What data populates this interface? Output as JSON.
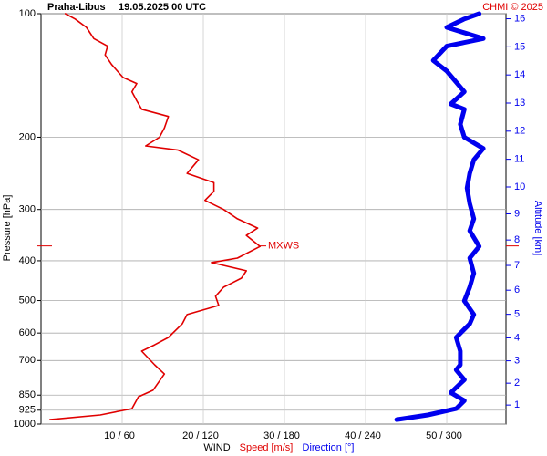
{
  "chart_data": {
    "type": "line",
    "station": "Praha-Libus",
    "title": "19.05.2025 00 UTC",
    "credit": "CHMI © 2025",
    "ylabel": "Pressure [hPa]",
    "y2label": "Altitude [km]",
    "xlabel": "WIND",
    "log_y": true,
    "grid": true,
    "ylim": [
      1000,
      100
    ],
    "yticks": [
      100,
      200,
      300,
      400,
      500,
      600,
      700,
      850,
      925,
      1000
    ],
    "y2ticks": [
      1,
      2,
      3,
      4,
      5,
      6,
      7,
      8,
      9,
      10,
      11,
      12,
      13,
      14,
      15,
      16
    ],
    "xlim": [
      0,
      57.3
    ],
    "x2lim": [
      0,
      343.8
    ],
    "xticks": [
      {
        "value": 10,
        "label": "10 / 60"
      },
      {
        "value": 20,
        "label": "20 / 120"
      },
      {
        "value": 30,
        "label": "30 / 180"
      },
      {
        "value": 40,
        "label": "40 / 240"
      },
      {
        "value": 50,
        "label": "50 / 300"
      }
    ],
    "series": [
      {
        "name": "Speed [m/s]",
        "color": "#e00000",
        "pressure": [
          975,
          950,
          917,
          858,
          827,
          755,
          717,
          664,
          641,
          615,
          570,
          541,
          514,
          488,
          464,
          441,
          423,
          404,
          394,
          369,
          347,
          333,
          316,
          300,
          285,
          271,
          258,
          245,
          227,
          215,
          210,
          200,
          190,
          178,
          171,
          163,
          155,
          148,
          143,
          133,
          126,
          120,
          115,
          108,
          103,
          100
        ],
        "values": [
          1.1,
          7.3,
          11.2,
          12,
          13.8,
          15.2,
          14,
          12.4,
          14,
          15.7,
          17.4,
          18,
          21.9,
          21.5,
          22.5,
          24.7,
          25.3,
          21,
          24.2,
          27,
          25.3,
          26.7,
          24.2,
          22.5,
          20.2,
          21.3,
          21.3,
          18,
          19.4,
          16.9,
          12.9,
          14.6,
          15.2,
          15.7,
          12.4,
          11.8,
          11.2,
          11.8,
          10.1,
          8.7,
          7.9,
          8.2,
          6.5,
          5.6,
          4.2,
          3
        ]
      },
      {
        "name": "Direction [°]",
        "color": "#0000ee",
        "axis": "x2",
        "pressure": [
          975,
          950,
          917,
          877,
          838,
          780,
          738,
          717,
          664,
          615,
          570,
          541,
          501,
          464,
          429,
          394,
          369,
          338,
          316,
          290,
          266,
          245,
          227,
          213,
          200,
          186,
          171,
          166,
          155,
          138,
          130,
          120,
          115,
          108,
          103,
          100
        ],
        "values": [
          263,
          286,
          307,
          313,
          303,
          313,
          307,
          310,
          310,
          307,
          317,
          320,
          313,
          317,
          320,
          317,
          324,
          317,
          320,
          317,
          315,
          317,
          320,
          327,
          313,
          310,
          313,
          303,
          313,
          300,
          290,
          300,
          327,
          300,
          313,
          324
        ]
      }
    ],
    "annotation": {
      "text": "MXWS",
      "pressure": 368
    }
  }
}
